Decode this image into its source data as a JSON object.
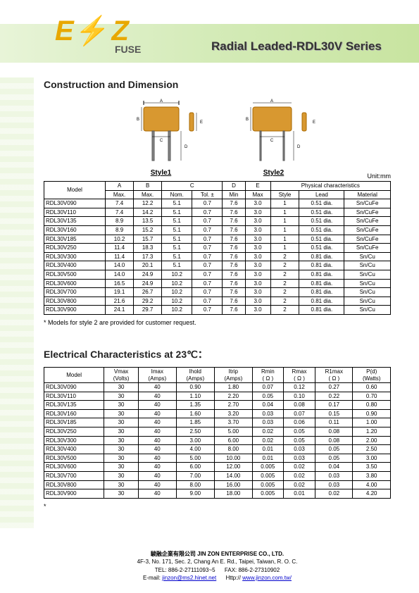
{
  "header": {
    "logo_left": "E",
    "logo_right": "Z",
    "fuse_label": "FUSE",
    "series_title": "Radial Leaded-RDL30V Series"
  },
  "section1": {
    "title": "Construction and Dimension",
    "style1_label": "Style1",
    "style2_label": "Style2",
    "unit_label": "Unit:mm",
    "table": {
      "head_model": "Model",
      "head_a": "A",
      "head_a_sub": "Max.",
      "head_b": "B",
      "head_b_sub": "Max.",
      "head_c": "C",
      "head_c_nom": "Nom.",
      "head_c_tol": "Tol. ±",
      "head_d": "D",
      "head_d_sub": "Min",
      "head_e": "E",
      "head_e_sub": "Max",
      "head_phys": "Physical characteristics",
      "head_style": "Style",
      "head_lead": "Lead",
      "head_material": "Material",
      "rows": [
        {
          "model": "RDL30V090",
          "a": "7.4",
          "b": "12.2",
          "cn": "5.1",
          "ct": "0.7",
          "d": "7.6",
          "e": "3.0",
          "style": "1",
          "lead": "0.51 dia.",
          "mat": "Sn/CuFe"
        },
        {
          "model": "RDL30V110",
          "a": "7.4",
          "b": "14.2",
          "cn": "5.1",
          "ct": "0.7",
          "d": "7.6",
          "e": "3.0",
          "style": "1",
          "lead": "0.51 dia.",
          "mat": "Sn/CuFe"
        },
        {
          "model": "RDL30V135",
          "a": "8.9",
          "b": "13.5",
          "cn": "5.1",
          "ct": "0.7",
          "d": "7.6",
          "e": "3.0",
          "style": "1",
          "lead": "0.51 dia.",
          "mat": "Sn/CuFe"
        },
        {
          "model": "RDL30V160",
          "a": "8.9",
          "b": "15.2",
          "cn": "5.1",
          "ct": "0.7",
          "d": "7.6",
          "e": "3.0",
          "style": "1",
          "lead": "0.51 dia.",
          "mat": "Sn/CuFe"
        },
        {
          "model": "RDL30V185",
          "a": "10.2",
          "b": "15.7",
          "cn": "5.1",
          "ct": "0.7",
          "d": "7.6",
          "e": "3.0",
          "style": "1",
          "lead": "0.51 dia.",
          "mat": "Sn/CuFe"
        },
        {
          "model": "RDL30V250",
          "a": "11.4",
          "b": "18.3",
          "cn": "5.1",
          "ct": "0.7",
          "d": "7.6",
          "e": "3.0",
          "style": "1",
          "lead": "0.51 dia.",
          "mat": "Sn/CuFe"
        },
        {
          "model": "RDL30V300",
          "a": "11.4",
          "b": "17.3",
          "cn": "5.1",
          "ct": "0.7",
          "d": "7.6",
          "e": "3.0",
          "style": "2",
          "lead": "0.81 dia.",
          "mat": "Sn/Cu"
        },
        {
          "model": "RDL30V400",
          "a": "14.0",
          "b": "20.1",
          "cn": "5.1",
          "ct": "0.7",
          "d": "7.6",
          "e": "3.0",
          "style": "2",
          "lead": "0.81 dia.",
          "mat": "Sn/Cu"
        },
        {
          "model": "RDL30V500",
          "a": "14.0",
          "b": "24.9",
          "cn": "10.2",
          "ct": "0.7",
          "d": "7.6",
          "e": "3.0",
          "style": "2",
          "lead": "0.81 dia.",
          "mat": "Sn/Cu"
        },
        {
          "model": "RDL30V600",
          "a": "16.5",
          "b": "24.9",
          "cn": "10.2",
          "ct": "0.7",
          "d": "7.6",
          "e": "3.0",
          "style": "2",
          "lead": "0.81 dia.",
          "mat": "Sn/Cu"
        },
        {
          "model": "RDL30V700",
          "a": "19.1",
          "b": "26.7",
          "cn": "10.2",
          "ct": "0.7",
          "d": "7.6",
          "e": "3.0",
          "style": "2",
          "lead": "0.81 dia.",
          "mat": "Sn/Cu"
        },
        {
          "model": "RDL30V800",
          "a": "21.6",
          "b": "29.2",
          "cn": "10.2",
          "ct": "0.7",
          "d": "7.6",
          "e": "3.0",
          "style": "2",
          "lead": "0.81 dia.",
          "mat": "Sn/Cu"
        },
        {
          "model": "RDL30V900",
          "a": "24.1",
          "b": "29.7",
          "cn": "10.2",
          "ct": "0.7",
          "d": "7.6",
          "e": "3.0",
          "style": "2",
          "lead": "0.81 dia.",
          "mat": "Sn/Cu"
        }
      ]
    },
    "note": "* Models for style 2 are provided for customer request."
  },
  "section2": {
    "title": "Electrical Characteristics at 23℃：",
    "table": {
      "head_model": "Model",
      "head_vmax": "Vmax",
      "head_vmax_sub": "(Volts)",
      "head_imax": "Imax",
      "head_imax_sub": "(Amps)",
      "head_ihold": "Ihold",
      "head_ihold_sub": "(Amps)",
      "head_itrip": "Itrip",
      "head_itrip_sub": "(Amps)",
      "head_rmin": "Rmin",
      "head_rmin_sub": "( Ω )",
      "head_rmax": "Rmax",
      "head_rmax_sub": "( Ω )",
      "head_r1max": "R1max",
      "head_r1max_sub": "( Ω )",
      "head_pd": "P(d)",
      "head_pd_sub": "(Watts)",
      "rows": [
        {
          "model": "RDL30V090",
          "v": "30",
          "i": "40",
          "ih": "0.90",
          "it": "1.80",
          "rmin": "0.07",
          "rmax": "0.12",
          "r1": "0.27",
          "pd": "0.60"
        },
        {
          "model": "RDL30V110",
          "v": "30",
          "i": "40",
          "ih": "1.10",
          "it": "2.20",
          "rmin": "0.05",
          "rmax": "0.10",
          "r1": "0.22",
          "pd": "0.70"
        },
        {
          "model": "RDL30V135",
          "v": "30",
          "i": "40",
          "ih": "1.35",
          "it": "2.70",
          "rmin": "0.04",
          "rmax": "0.08",
          "r1": "0.17",
          "pd": "0.80"
        },
        {
          "model": "RDL30V160",
          "v": "30",
          "i": "40",
          "ih": "1.60",
          "it": "3.20",
          "rmin": "0.03",
          "rmax": "0.07",
          "r1": "0.15",
          "pd": "0.90"
        },
        {
          "model": "RDL30V185",
          "v": "30",
          "i": "40",
          "ih": "1.85",
          "it": "3.70",
          "rmin": "0.03",
          "rmax": "0.06",
          "r1": "0.11",
          "pd": "1.00"
        },
        {
          "model": "RDL30V250",
          "v": "30",
          "i": "40",
          "ih": "2.50",
          "it": "5.00",
          "rmin": "0.02",
          "rmax": "0.05",
          "r1": "0.08",
          "pd": "1.20"
        },
        {
          "model": "RDL30V300",
          "v": "30",
          "i": "40",
          "ih": "3.00",
          "it": "6.00",
          "rmin": "0.02",
          "rmax": "0.05",
          "r1": "0.08",
          "pd": "2.00"
        },
        {
          "model": "RDL30V400",
          "v": "30",
          "i": "40",
          "ih": "4.00",
          "it": "8.00",
          "rmin": "0.01",
          "rmax": "0.03",
          "r1": "0.05",
          "pd": "2.50"
        },
        {
          "model": "RDL30V500",
          "v": "30",
          "i": "40",
          "ih": "5.00",
          "it": "10.00",
          "rmin": "0.01",
          "rmax": "0.03",
          "r1": "0.05",
          "pd": "3.00"
        },
        {
          "model": "RDL30V600",
          "v": "30",
          "i": "40",
          "ih": "6.00",
          "it": "12.00",
          "rmin": "0.005",
          "rmax": "0.02",
          "r1": "0.04",
          "pd": "3.50"
        },
        {
          "model": "RDL30V700",
          "v": "30",
          "i": "40",
          "ih": "7.00",
          "it": "14.00",
          "rmin": "0.005",
          "rmax": "0.02",
          "r1": "0.03",
          "pd": "3.80"
        },
        {
          "model": "RDL30V800",
          "v": "30",
          "i": "40",
          "ih": "8.00",
          "it": "16.00",
          "rmin": "0.005",
          "rmax": "0.02",
          "r1": "0.03",
          "pd": "4.00"
        },
        {
          "model": "RDL30V900",
          "v": "30",
          "i": "40",
          "ih": "9.00",
          "it": "18.00",
          "rmin": "0.005",
          "rmax": "0.01",
          "r1": "0.02",
          "pd": "4.20"
        }
      ]
    },
    "note": "*"
  },
  "footer": {
    "company_cn": "駿融企業有限公司",
    "company_en": "JIN ZON ENTERPRISE CO., LTD.",
    "address": "4F-3, No. 171, Sec. 2, Chang An E. Rd., Taipei, Taiwan, R. O. C.",
    "tel": "TEL: 886-2-27111093~5",
    "fax": "FAX: 886-2-27310902",
    "email_label": "E-mail:",
    "email": "jinzon@ms2.hinet.net",
    "http_label": "Http://",
    "url": "www.jinzon.com.tw/"
  },
  "colors": {
    "fuse_body": "#d89830",
    "band_start": "#e8f4d8",
    "band_end": "#c8e4a0"
  }
}
